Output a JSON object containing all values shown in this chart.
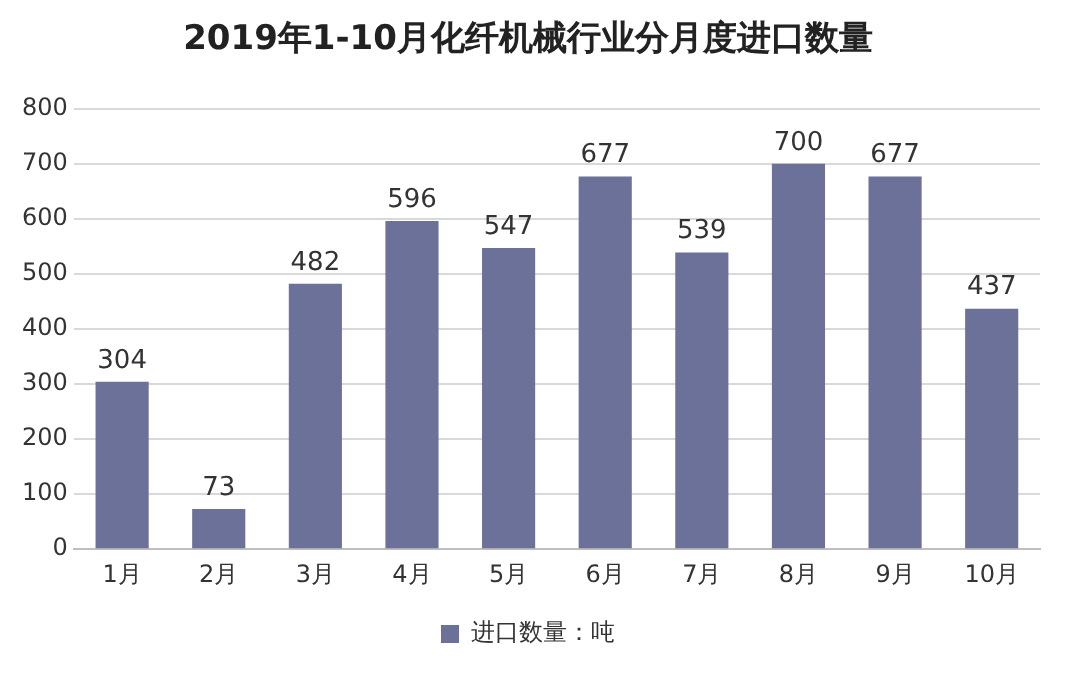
{
  "chart_data": {
    "type": "bar",
    "title": "2019年1-10月化纤机械行业分月度进口数量",
    "categories": [
      "1月",
      "2月",
      "3月",
      "4月",
      "5月",
      "6月",
      "7月",
      "8月",
      "9月",
      "10月"
    ],
    "series": [
      {
        "name": "进口数量：吨",
        "color": "#6b7199",
        "values": [
          304,
          73,
          482,
          596,
          547,
          677,
          539,
          700,
          677,
          437
        ]
      }
    ],
    "ylim": [
      0,
      800
    ],
    "yticks": [
      0,
      100,
      200,
      300,
      400,
      500,
      600,
      700,
      800
    ],
    "grid": "y",
    "legend": "bottom",
    "data_labels": true
  }
}
